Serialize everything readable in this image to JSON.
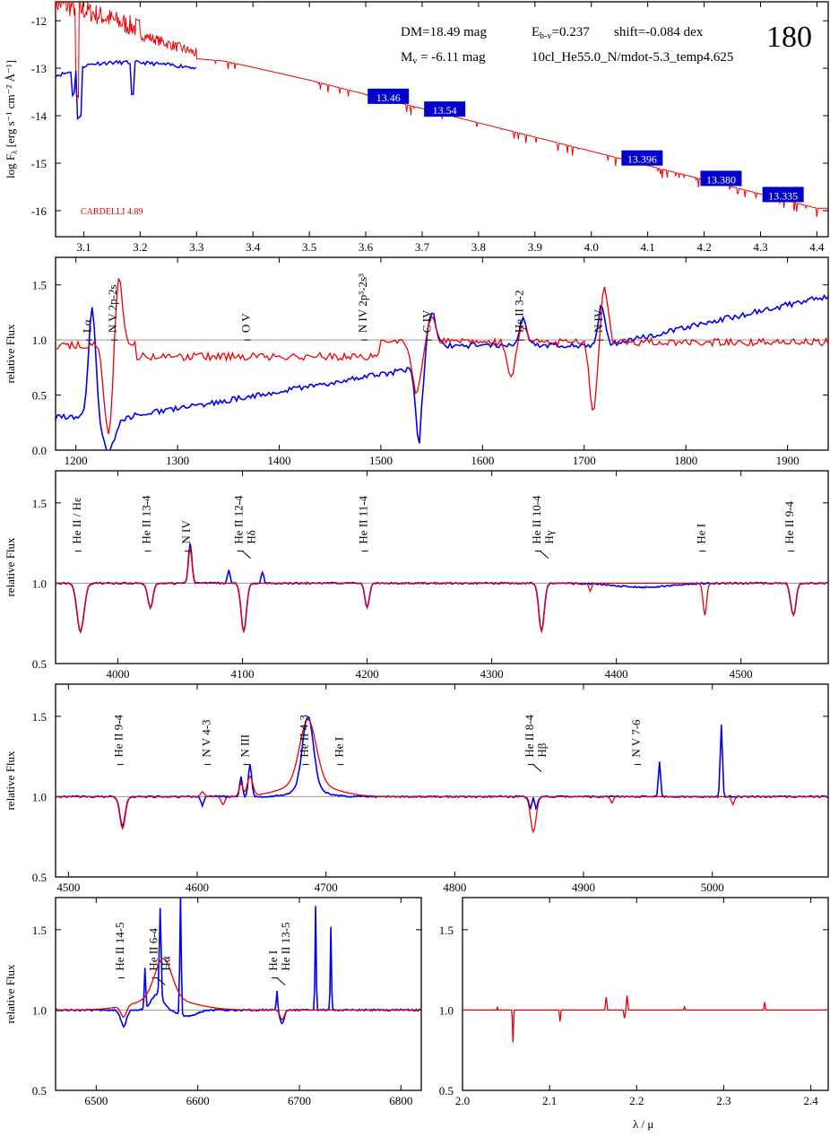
{
  "figure": {
    "number": "180",
    "info_line1": {
      "dm": "DM=18.49 mag",
      "ebv": "E",
      "ebv_sub": "b-v",
      "ebv_val": "=0.237",
      "shift": "shift=-0.084 dex"
    },
    "info_line2": {
      "mv": "M",
      "mv_sub": "v",
      "mv_val": " =  -6.11 mag",
      "model": "10cl_He55.0_N/mdot-5.3_temp4.625"
    },
    "reddening_law": "CARDELLI 4.89",
    "bottom_xlabel": "λ / μ"
  },
  "colors": {
    "observation": "#0000ee",
    "model": "#ee0000",
    "unity": "#999999",
    "label_box": "#0000cc"
  },
  "chart_data": [
    {
      "type": "line",
      "panel": "sed",
      "ylabel": "log F",
      "ylabel_sub": "λ",
      "ylabel_units": "[erg s⁻¹ cm⁻² Å⁻¹]",
      "xlim": [
        3.05,
        4.42
      ],
      "ylim": [
        -16.55,
        -11.6
      ],
      "xticks": [
        3.1,
        3.2,
        3.3,
        3.4,
        3.5,
        3.6,
        3.7,
        3.8,
        3.9,
        4.0,
        4.1,
        4.2,
        4.3,
        4.4
      ],
      "yticks": [
        -12,
        -13,
        -14,
        -15,
        -16
      ],
      "series": [
        {
          "x": [
            3.05,
            3.07,
            3.08,
            3.09,
            3.1,
            3.12,
            3.15,
            3.18,
            3.2,
            3.22,
            3.25,
            3.28,
            3.3
          ],
          "y": [
            -13.15,
            -13.1,
            -13.05,
            -13.0,
            -12.95,
            -12.9,
            -12.88,
            -12.88,
            -12.88,
            -12.9,
            -12.93,
            -12.96,
            -12.99
          ]
        },
        {
          "x": [
            3.05,
            3.1,
            3.15,
            3.2,
            3.25,
            3.3,
            3.35,
            3.4,
            3.5,
            3.6,
            3.7,
            3.8,
            3.9,
            4.0,
            4.1,
            4.2,
            4.3,
            4.4
          ],
          "y": [
            -11.85,
            -12.0,
            -12.2,
            -12.4,
            -12.6,
            -12.8,
            -12.85,
            -12.98,
            -13.25,
            -13.55,
            -13.85,
            -14.15,
            -14.45,
            -14.75,
            -15.05,
            -15.35,
            -15.65,
            -15.95
          ]
        }
      ],
      "photometry": [
        {
          "x": 3.64,
          "y": -13.6,
          "label": "13.46"
        },
        {
          "x": 3.74,
          "y": -13.87,
          "label": "13.54"
        },
        {
          "x": 4.09,
          "y": -14.9,
          "label": "13.396"
        },
        {
          "x": 4.23,
          "y": -15.33,
          "label": "13.380"
        },
        {
          "x": 4.34,
          "y": -15.67,
          "label": "13.335"
        }
      ]
    },
    {
      "type": "line",
      "panel": "uv",
      "ylabel": "relative Flux",
      "xlim": [
        1180,
        1940
      ],
      "ylim": [
        0,
        1.75
      ],
      "xticks": [
        1200,
        1300,
        1400,
        1500,
        1600,
        1700,
        1800,
        1900
      ],
      "yticks": [
        0.0,
        0.5,
        1.0,
        1.5
      ],
      "lines": [
        {
          "x": 1215,
          "label": "Lα"
        },
        {
          "x": 1240,
          "label": "N V 2p-2s"
        },
        {
          "x": 1371,
          "label": "O V"
        },
        {
          "x": 1486,
          "label": "N IV 2p³-2s³"
        },
        {
          "x": 1549,
          "label": "C IV"
        },
        {
          "x": 1640,
          "label": "He II 3-2"
        },
        {
          "x": 1718,
          "label": "N IV"
        }
      ]
    },
    {
      "type": "line",
      "panel": "optical1",
      "ylabel": "relative Flux",
      "xlim": [
        3950,
        4570
      ],
      "ylim": [
        0.5,
        1.7
      ],
      "xticks": [
        4000,
        4100,
        4200,
        4300,
        4400,
        4500
      ],
      "yticks": [
        0.5,
        1.0,
        1.5
      ],
      "lines": [
        {
          "x": 3970,
          "label": "He II / Hε"
        },
        {
          "x": 4026,
          "label": "He II 13-4"
        },
        {
          "x": 4058,
          "label": "N IV"
        },
        {
          "x": 4100,
          "label": "He II 12-4",
          "label2": "Hδ"
        },
        {
          "x": 4200,
          "label": "He II 11-4"
        },
        {
          "x": 4339,
          "label": "He II 10-4",
          "label2": "Hγ"
        },
        {
          "x": 4471,
          "label": "He I"
        },
        {
          "x": 4542,
          "label": "He II 9-4"
        }
      ]
    },
    {
      "type": "line",
      "panel": "optical2",
      "ylabel": "relative Flux",
      "xlim": [
        4490,
        5090
      ],
      "ylim": [
        0.5,
        1.7
      ],
      "xticks": [
        4500,
        4600,
        4700,
        4800,
        4900,
        5000
      ],
      "yticks": [
        0.5,
        1.0,
        1.5
      ],
      "lines": [
        {
          "x": 4542,
          "label": "He II 9-4"
        },
        {
          "x": 4610,
          "label": "N V 4-3"
        },
        {
          "x": 4640,
          "label": "N III"
        },
        {
          "x": 4686,
          "label": "He II 4-3"
        },
        {
          "x": 4713,
          "label": "He I"
        },
        {
          "x": 4861,
          "label": "He II 8-4",
          "label2": "Hβ"
        },
        {
          "x": 4944,
          "label": "N V 7-6"
        }
      ]
    },
    {
      "type": "line",
      "panel": "halpha",
      "ylabel": "relative Flux",
      "xlim": [
        6460,
        6820
      ],
      "ylim": [
        0.5,
        1.7
      ],
      "xticks": [
        6500,
        6600,
        6700,
        6800
      ],
      "yticks": [
        0.5,
        1.0,
        1.5
      ],
      "lines": [
        {
          "x": 6527,
          "label": "He II 14-5"
        },
        {
          "x": 6560,
          "label": "He II 6-4",
          "label2": "Hα"
        },
        {
          "x": 6678,
          "label": "He I",
          "label2": "He II 13-5"
        }
      ]
    },
    {
      "type": "line",
      "panel": "ir",
      "ylabel": "",
      "xlim": [
        2.0,
        2.42
      ],
      "ylim": [
        0.5,
        1.7
      ],
      "xticks": [
        2.0,
        2.1,
        2.2,
        2.3,
        2.4
      ],
      "yticks": [
        0.5,
        1.0,
        1.5
      ]
    }
  ]
}
